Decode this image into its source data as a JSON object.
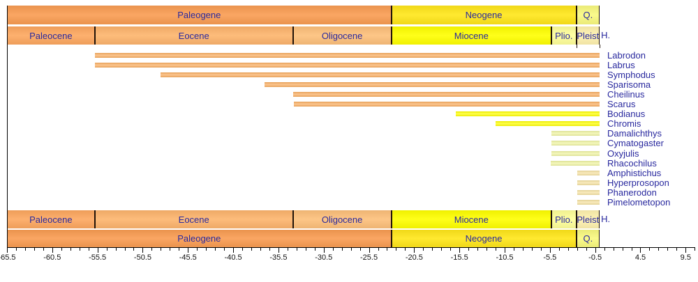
{
  "chart_data": {
    "type": "bar",
    "variant": "geologic-range-chart",
    "title": "",
    "xlabel": "",
    "ylabel": "",
    "orientation": "horizontal",
    "legend": "none",
    "grid": false,
    "time_axis": {
      "unit": "Ma",
      "range": [
        -65.5,
        10.5
      ],
      "minor_tick_step": 1,
      "major_tick_step": 5,
      "major_tick_labels": [
        "-65.5",
        "-60.5",
        "-55.5",
        "-50.5",
        "-45.5",
        "-40.5",
        "-35.5",
        "-30.5",
        "-25.5",
        "-20.5",
        "-15.5",
        "-10.5",
        "-5.5",
        "-0.5",
        "4.5",
        "9.5"
      ]
    },
    "periods": [
      {
        "name": "Paleogene",
        "start": -65.5,
        "end": -23.03,
        "color": "#F99C52"
      },
      {
        "name": "Neogene",
        "start": -23.03,
        "end": -2.59,
        "color": "#FFE619"
      },
      {
        "name": "Q.",
        "start": -2.59,
        "end": 0,
        "color": "#F9F97F"
      }
    ],
    "epochs": [
      {
        "name": "Paleocene",
        "start": -65.5,
        "end": -55.8,
        "color": "#FDA75F"
      },
      {
        "name": "Eocene",
        "start": -55.8,
        "end": -33.9,
        "color": "#FDB46C"
      },
      {
        "name": "Oligocene",
        "start": -33.9,
        "end": -23.03,
        "color": "#FDC07A"
      },
      {
        "name": "Miocene",
        "start": -23.03,
        "end": -5.33,
        "color": "#FFFF00"
      },
      {
        "name": "Plio.",
        "start": -5.33,
        "end": -2.59,
        "color": "#FFFF99"
      },
      {
        "name": "Pleist",
        "start": -2.59,
        "end": -0.01,
        "color": "#FFF2AE"
      },
      {
        "name": "H.",
        "start": -0.01,
        "end": 0,
        "color": "#FEF2E0",
        "label_outside": true
      }
    ],
    "taxa": [
      {
        "name": "Labrodon",
        "start": -55.8,
        "end": 0,
        "color": "#FAAE60"
      },
      {
        "name": "Labrus",
        "start": -55.8,
        "end": 0,
        "color": "#FAAE60"
      },
      {
        "name": "Symphodus",
        "start": -48.5,
        "end": 0,
        "color": "#FAAE60"
      },
      {
        "name": "Sparisoma",
        "start": -37.0,
        "end": 0,
        "color": "#FAAE60"
      },
      {
        "name": "Cheilinus",
        "start": -33.9,
        "end": 0,
        "color": "#FAAE60"
      },
      {
        "name": "Scarus",
        "start": -33.8,
        "end": 0,
        "color": "#FAAE60"
      },
      {
        "name": "Bodianus",
        "start": -15.9,
        "end": 0,
        "color": "#FFFF00"
      },
      {
        "name": "Chromis",
        "start": -11.5,
        "end": 0,
        "color": "#FFFF00"
      },
      {
        "name": "Damalichthys",
        "start": -5.3,
        "end": 0,
        "color": "#F0F5A2"
      },
      {
        "name": "Cymatogaster",
        "start": -5.3,
        "end": 0,
        "color": "#F0F5A2"
      },
      {
        "name": "Oxyjulis",
        "start": -5.3,
        "end": 0,
        "color": "#F0F5A2"
      },
      {
        "name": "Rhacochilus",
        "start": -5.4,
        "end": 0,
        "color": "#F0F5A2"
      },
      {
        "name": "Amphistichus",
        "start": -2.5,
        "end": 0,
        "color": "#F7E2A2"
      },
      {
        "name": "Hyperprosopon",
        "start": -2.5,
        "end": 0,
        "color": "#F7E2A2"
      },
      {
        "name": "Phanerodon",
        "start": -2.5,
        "end": 0,
        "color": "#F7E2A2"
      },
      {
        "name": "Pimelometopon",
        "start": -2.5,
        "end": 0,
        "color": "#F7E2A2"
      }
    ],
    "colors": {
      "separator": "#1F1208",
      "axis": "#000000",
      "label_text": "#28289E",
      "tick_text": "#111111",
      "background": "#FFFFFF"
    }
  }
}
